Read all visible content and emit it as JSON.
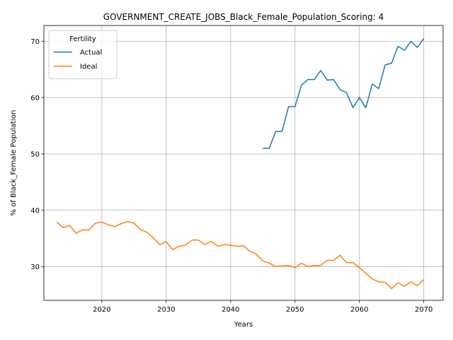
{
  "chart_data": {
    "type": "line",
    "title": "GOVERNMENT_CREATE_JOBS_Black_Female_Population_Scoring: 4",
    "xlabel": "Years",
    "ylabel": "% of Black_Female Population",
    "xlim": [
      2011,
      2073
    ],
    "ylim": [
      24,
      72.8
    ],
    "xticks": [
      2020,
      2030,
      2040,
      2050,
      2060,
      2070
    ],
    "yticks": [
      30,
      40,
      50,
      60,
      70
    ],
    "grid": true,
    "legend": {
      "title": "Fertility",
      "placement": "top-left"
    },
    "series": [
      {
        "name": "Actual",
        "color": "#1f77b4",
        "x": [
          2045,
          2046,
          2047,
          2048,
          2049,
          2050,
          2051,
          2052,
          2053,
          2054,
          2055,
          2056,
          2057,
          2058,
          2059,
          2060,
          2061,
          2062,
          2063,
          2064,
          2065,
          2066,
          2067,
          2068,
          2069,
          2070
        ],
        "values": [
          51.0,
          51.0,
          54.0,
          54.0,
          58.4,
          58.4,
          62.2,
          63.2,
          63.2,
          64.8,
          63.1,
          63.2,
          61.4,
          60.9,
          58.2,
          60.0,
          58.2,
          62.4,
          61.6,
          65.8,
          66.1,
          69.1,
          68.4,
          70.0,
          68.9,
          70.5
        ]
      },
      {
        "name": "Ideal",
        "color": "#ff7f0e",
        "x": [
          2013,
          2014,
          2015,
          2016,
          2017,
          2018,
          2019,
          2020,
          2021,
          2022,
          2023,
          2024,
          2025,
          2026,
          2027,
          2028,
          2029,
          2030,
          2031,
          2032,
          2033,
          2034,
          2035,
          2036,
          2037,
          2038,
          2039,
          2040,
          2041,
          2042,
          2043,
          2044,
          2045,
          2046,
          2047,
          2048,
          2049,
          2050,
          2051,
          2052,
          2053,
          2054,
          2055,
          2056,
          2057,
          2058,
          2059,
          2060,
          2061,
          2062,
          2063,
          2064,
          2065,
          2066,
          2067,
          2068,
          2069,
          2070
        ],
        "values": [
          37.9,
          36.9,
          37.3,
          35.9,
          36.5,
          36.5,
          37.7,
          37.9,
          37.4,
          37.1,
          37.6,
          38.0,
          37.7,
          36.6,
          36.1,
          35.1,
          33.9,
          34.4,
          33.0,
          33.6,
          33.8,
          34.7,
          34.7,
          33.9,
          34.5,
          33.6,
          33.9,
          33.8,
          33.6,
          33.7,
          32.7,
          32.2,
          31.0,
          30.6,
          30.0,
          30.1,
          30.2,
          29.8,
          30.6,
          30.0,
          30.2,
          30.2,
          31.1,
          31.1,
          32.0,
          30.7,
          30.7,
          29.8,
          28.8,
          27.8,
          27.3,
          27.2,
          26.1,
          27.1,
          26.5,
          27.3,
          26.6,
          27.7
        ]
      }
    ]
  }
}
